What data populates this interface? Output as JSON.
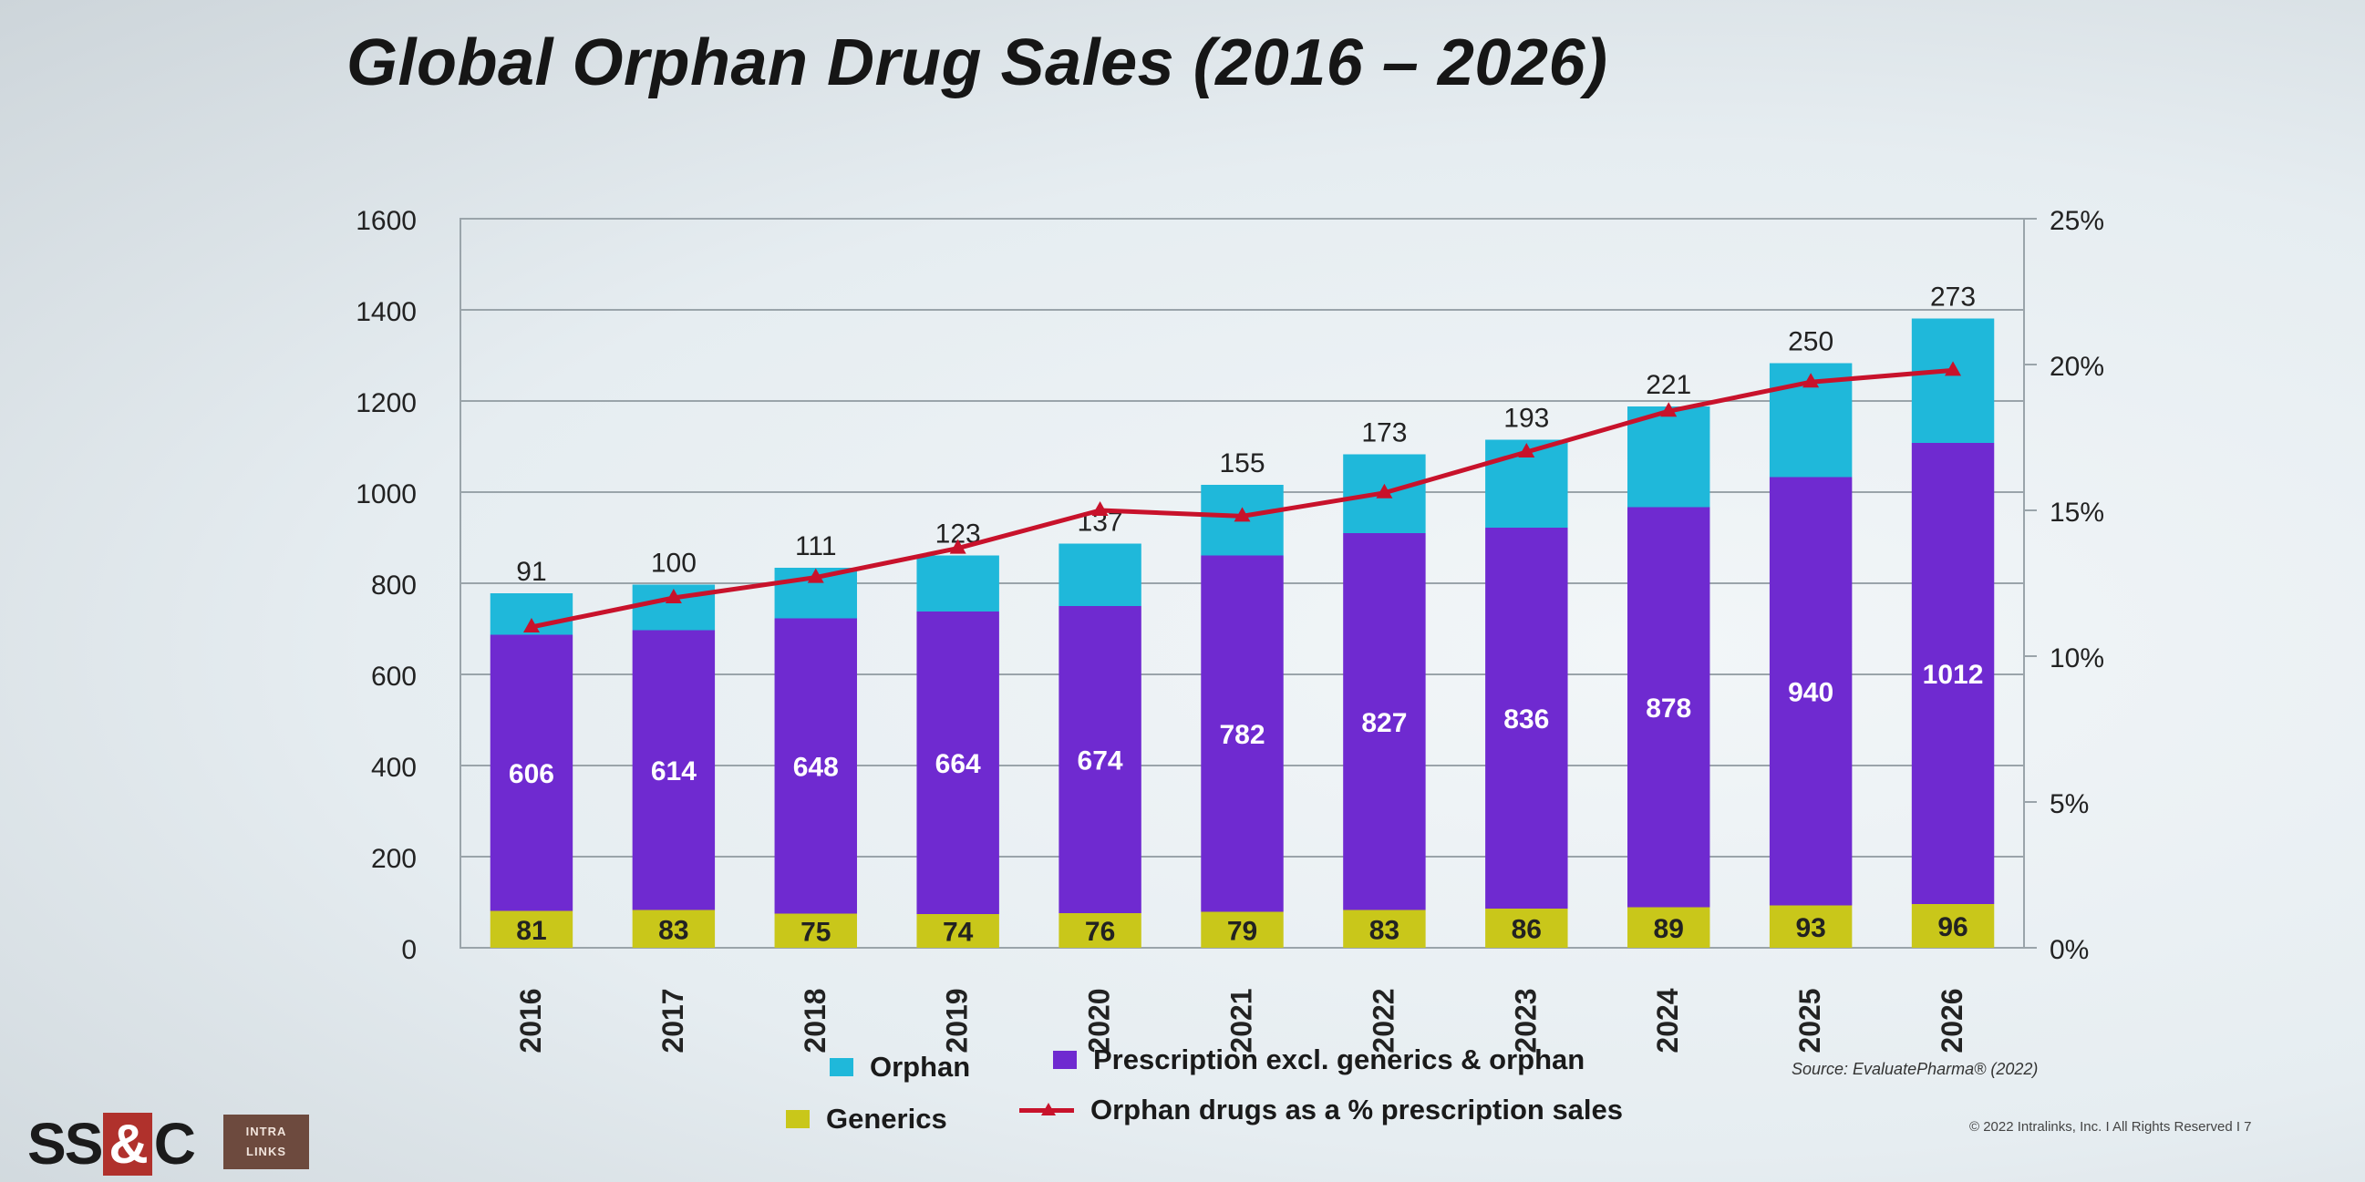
{
  "title": "Global Orphan Drug Sales (2016 – 2026)",
  "source": "Source: EvaluatePharma® (2022)",
  "copyright": "© 2022 Intralinks, Inc. I All Rights Reserved I 7",
  "logos": {
    "ssc_left": "SS",
    "ssc_amp": "&",
    "ssc_right": "C",
    "intralinks_line1": "INTRA",
    "intralinks_line2": "LINKS"
  },
  "legend": {
    "orphan": "Orphan",
    "prescription": "Prescription excl. generics & orphan",
    "generics": "Generics",
    "line": "Orphan drugs as a % prescription sales"
  },
  "colors": {
    "orphan": "#1fb8da",
    "prescription": "#6f2ad0",
    "generics": "#c9c71a",
    "line": "#c8122b",
    "grid": "#9aa4aa"
  },
  "chart_data": {
    "type": "bar",
    "stacked": true,
    "categories": [
      "2016",
      "2017",
      "2018",
      "2019",
      "2020",
      "2021",
      "2022",
      "2023",
      "2024",
      "2025",
      "2026"
    ],
    "series": [
      {
        "name": "Generics",
        "values": [
          81,
          83,
          75,
          74,
          76,
          79,
          83,
          86,
          89,
          93,
          96
        ]
      },
      {
        "name": "Prescription excl. generics & orphan",
        "values": [
          606,
          614,
          648,
          664,
          674,
          782,
          827,
          836,
          878,
          940,
          1012
        ]
      },
      {
        "name": "Orphan",
        "values": [
          91,
          100,
          111,
          123,
          137,
          155,
          173,
          193,
          221,
          250,
          273
        ]
      }
    ],
    "data_labels": {
      "generics": [
        "81",
        "83",
        "75",
        "74",
        "76",
        "79",
        "83",
        "86",
        "89",
        "93",
        "96"
      ],
      "prescription": [
        "606",
        "614",
        "648",
        "664",
        "674",
        "782",
        "827",
        "836",
        "878",
        "940",
        "1012"
      ],
      "orphan": [
        "91",
        "100",
        "111",
        "123",
        "137",
        "155",
        "173",
        "193",
        "221",
        "250",
        "273"
      ]
    },
    "line_series": {
      "name": "Orphan drugs as a % prescription sales",
      "axis": "right",
      "values": [
        11.0,
        12.0,
        12.7,
        13.7,
        15.0,
        14.8,
        15.6,
        17.0,
        18.4,
        19.4,
        19.8
      ]
    },
    "ylim": [
      0,
      1600
    ],
    "yticks": [
      "0",
      "200",
      "400",
      "600",
      "800",
      "1000",
      "1200",
      "1400",
      "1600"
    ],
    "y2lim": [
      0,
      25
    ],
    "y2ticks": [
      "0%",
      "5%",
      "10%",
      "15%",
      "20%",
      "25%"
    ],
    "grid": true
  }
}
